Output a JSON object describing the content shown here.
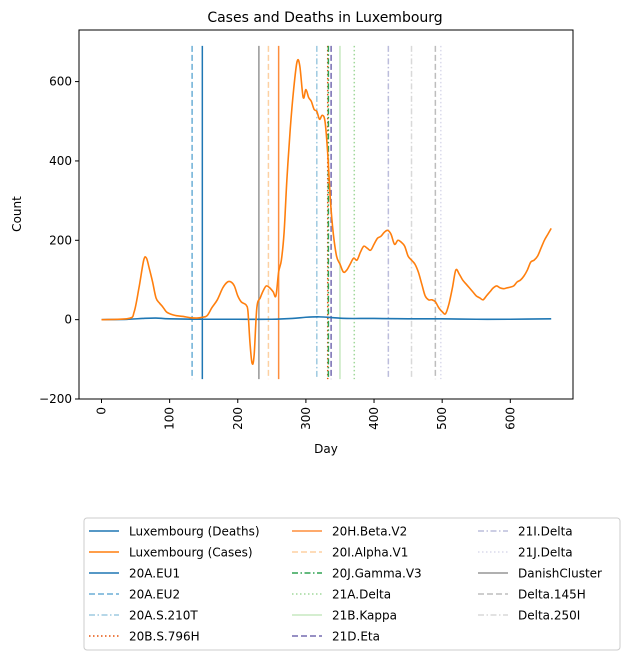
{
  "chart_data": {
    "type": "line",
    "title": "Cases and Deaths in Luxembourg",
    "xlabel": "Day",
    "ylabel": "Count",
    "xlim": [
      -33,
      692
    ],
    "ylim": [
      -200,
      730
    ],
    "xticks": [
      0,
      100,
      200,
      300,
      400,
      500,
      600
    ],
    "yticks": [
      -200,
      0,
      200,
      400,
      600
    ],
    "grid": false,
    "legend_position": "bottom",
    "series": [
      {
        "name": "Luxembourg (Deaths)",
        "color": "#1f77b4",
        "x": [
          0,
          40,
          60,
          80,
          100,
          150,
          200,
          250,
          280,
          300,
          320,
          340,
          360,
          400,
          450,
          500,
          550,
          600,
          660
        ],
        "y": [
          0,
          1,
          3,
          4,
          2,
          1,
          1,
          1,
          3,
          6,
          7,
          5,
          3,
          3,
          2,
          2,
          1,
          1,
          2
        ]
      },
      {
        "name": "Luxembourg (Cases)",
        "color": "#ff7f0e",
        "x": [
          0,
          40,
          48,
          55,
          62,
          66,
          70,
          75,
          80,
          85,
          90,
          95,
          100,
          105,
          110,
          120,
          130,
          140,
          148,
          155,
          162,
          170,
          178,
          185,
          190,
          195,
          200,
          205,
          210,
          213,
          215,
          218,
          221,
          224,
          228,
          233,
          238,
          242,
          247,
          252,
          256,
          260,
          264,
          268,
          272,
          277,
          282,
          287,
          291,
          296,
          300,
          304,
          308,
          312,
          316,
          320,
          324,
          328,
          332,
          336,
          340,
          345,
          350,
          355,
          360,
          365,
          370,
          375,
          380,
          385,
          390,
          395,
          400,
          405,
          410,
          415,
          420,
          425,
          430,
          435,
          440,
          445,
          450,
          455,
          460,
          465,
          470,
          475,
          480,
          485,
          490,
          495,
          500,
          505,
          510,
          515,
          520,
          525,
          530,
          535,
          540,
          545,
          550,
          555,
          560,
          565,
          570,
          575,
          580,
          585,
          590,
          595,
          600,
          605,
          610,
          615,
          620,
          625,
          630,
          635,
          640,
          645,
          650,
          655,
          660
        ],
        "y": [
          0,
          3,
          20,
          80,
          150,
          155,
          130,
          95,
          55,
          42,
          32,
          20,
          15,
          12,
          10,
          8,
          5,
          4,
          6,
          10,
          30,
          50,
          80,
          95,
          95,
          85,
          60,
          45,
          40,
          35,
          20,
          -60,
          -110,
          -90,
          30,
          55,
          75,
          85,
          80,
          70,
          60,
          120,
          150,
          220,
          350,
          480,
          580,
          650,
          640,
          560,
          580,
          560,
          550,
          530,
          525,
          505,
          515,
          500,
          420,
          300,
          220,
          160,
          140,
          120,
          125,
          140,
          155,
          150,
          170,
          185,
          180,
          175,
          190,
          205,
          210,
          220,
          225,
          215,
          190,
          200,
          195,
          185,
          160,
          150,
          140,
          120,
          90,
          60,
          50,
          50,
          45,
          30,
          20,
          15,
          40,
          80,
          125,
          115,
          100,
          90,
          80,
          70,
          60,
          55,
          50,
          60,
          70,
          80,
          85,
          80,
          78,
          80,
          82,
          85,
          95,
          100,
          110,
          125,
          145,
          150,
          160,
          180,
          200,
          215,
          230
        ]
      }
    ],
    "vlines": [
      {
        "name": "20A.EU1",
        "x": 148,
        "color": "#1f77b4",
        "dash": "solid"
      },
      {
        "name": "20A.EU2",
        "x": 133,
        "color": "#6baed6",
        "dash": "dashed"
      },
      {
        "name": "20A.S.210T",
        "x": 316,
        "color": "#9ecae1",
        "dash": "dashdot"
      },
      {
        "name": "20B.S.796H",
        "x": 332,
        "color": "#e6550d",
        "dash": "dotted"
      },
      {
        "name": "20H.Beta.V2",
        "x": 260,
        "color": "#fd8d3c",
        "dash": "solid"
      },
      {
        "name": "20I.Alpha.V1",
        "x": 245,
        "color": "#fdd0a2",
        "dash": "dashed"
      },
      {
        "name": "20J.Gamma.V3",
        "x": 333,
        "color": "#31a354",
        "dash": "dashdot"
      },
      {
        "name": "21A.Delta",
        "x": 371,
        "color": "#a1d99b",
        "dash": "dotted"
      },
      {
        "name": "21B.Kappa",
        "x": 350,
        "color": "#c7e9c0",
        "dash": "solid"
      },
      {
        "name": "21D.Eta",
        "x": 337,
        "color": "#756bb1",
        "dash": "dashed"
      },
      {
        "name": "21I.Delta",
        "x": 421,
        "color": "#bcbddc",
        "dash": "dashdot"
      },
      {
        "name": "21J.Delta",
        "x": 498,
        "color": "#dadaeb",
        "dash": "dotted"
      },
      {
        "name": "DanishCluster",
        "x": 231,
        "color": "#969696",
        "dash": "solid"
      },
      {
        "name": "Delta.145H",
        "x": 490,
        "color": "#bdbdbd",
        "dash": "dashed"
      },
      {
        "name": "Delta.250I",
        "x": 455,
        "color": "#d9d9d9",
        "dash": "dashdot"
      }
    ],
    "vline_range": [
      -150,
      690
    ]
  }
}
